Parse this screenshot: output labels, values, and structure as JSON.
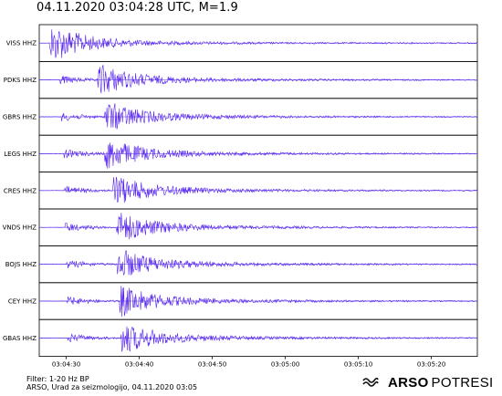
{
  "title": "04.11.2020  03:04:28 UTC, M=1.9",
  "chart_data": {
    "type": "line",
    "channels": [
      "VISS HHZ",
      "PDKS HHZ",
      "GBRS HHZ",
      "LEGS HHZ",
      "CRES HHZ",
      "VNDS HHZ",
      "BOJS HHZ",
      "CEY HHZ",
      "GBAS HHZ"
    ],
    "p_arrival_s": [
      1.7,
      2.8,
      3.0,
      3.4,
      3.4,
      3.6,
      3.7,
      3.8,
      3.9
    ],
    "s_arrival_s": [
      1.9,
      8.3,
      9.3,
      9.3,
      10.4,
      10.9,
      11.0,
      11.3,
      11.5
    ],
    "x_start": "03:04:26.3",
    "x_end": "03:05:26.3",
    "xlim_s": [
      0,
      60
    ],
    "x_ticks": [
      "03:04:30",
      "03:04:40",
      "03:04:50",
      "03:05:00",
      "03:05:10",
      "03:05:20"
    ],
    "x_tick_seconds": [
      3.7,
      13.7,
      23.7,
      33.7,
      43.7,
      53.7
    ],
    "trace_color": "#5522ee",
    "baseline_color": "#8877ee",
    "filter": "1-20 Hz BP"
  },
  "footer": {
    "filter_text": "Filter: 1-20 Hz BP",
    "credit_text": "ARSO, Urad za seizmologijo, 04.11.2020  03:05"
  },
  "brand": {
    "strong": "ARSO",
    "light": "POTRESI",
    "icon": "arso-wave-icon"
  }
}
